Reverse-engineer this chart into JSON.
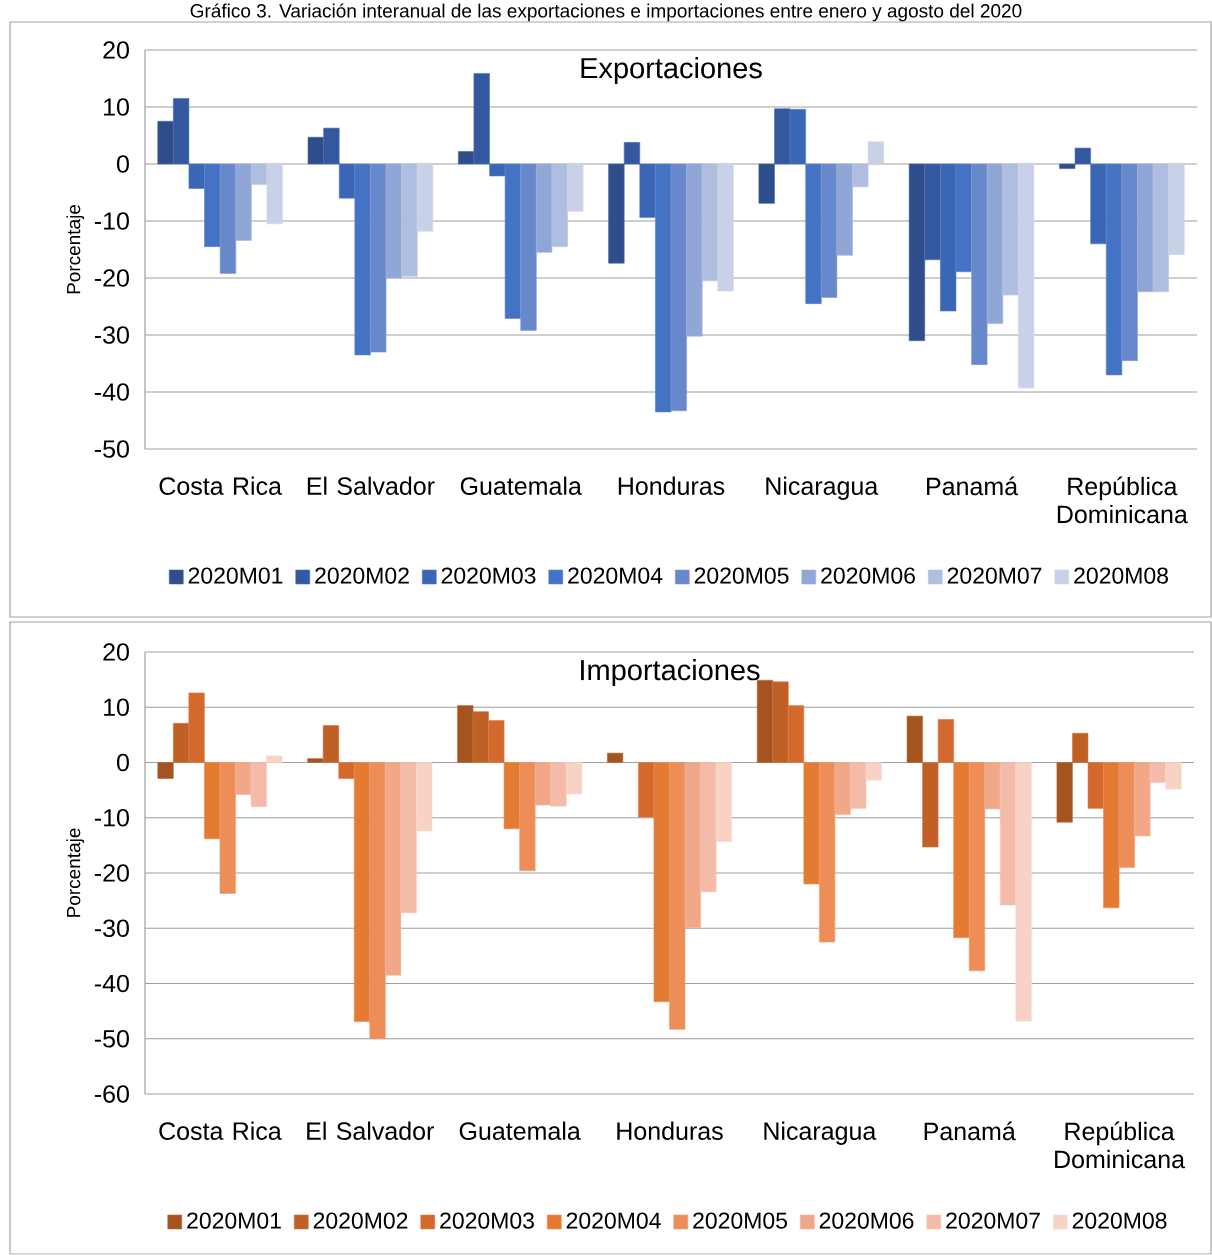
{
  "chart_data": [
    {
      "type": "bar",
      "title": "Exportaciones",
      "ylabel": "Porcentaje",
      "annotations": [
        "Gráfico 3. Variación interanual de las exportaciones e importaciones entre enero y agosto del 2020"
      ],
      "categories": [
        "Costa Rica",
        "El Salvador",
        "Guatemala",
        "Honduras",
        "Nicaragua",
        "Panamá",
        "República Dominicana"
      ],
      "series": [
        {
          "name": "2020M01",
          "color": "#2e4d8a",
          "values": [
            7.5,
            4.7,
            2.2,
            -17.4,
            -6.9,
            -31,
            -0.8
          ]
        },
        {
          "name": "2020M02",
          "color": "#3358a0",
          "values": [
            11.5,
            6.3,
            15.9,
            3.8,
            9.7,
            -16.8,
            2.8
          ]
        },
        {
          "name": "2020M03",
          "color": "#3a66b5",
          "values": [
            -4.3,
            -6,
            -2.1,
            -9.4,
            9.6,
            -25.8,
            -14
          ]
        },
        {
          "name": "2020M04",
          "color": "#4472c4",
          "values": [
            -14.5,
            -33.5,
            -27.1,
            -43.5,
            -24.5,
            -18.9,
            -37
          ]
        },
        {
          "name": "2020M05",
          "color": "#6888cc",
          "values": [
            -19.2,
            -33,
            -29.2,
            -43.3,
            -23.4,
            -35.2,
            -34.5
          ]
        },
        {
          "name": "2020M06",
          "color": "#8fa6d6",
          "values": [
            -13.4,
            -20,
            -15.5,
            -30.2,
            -16,
            -28,
            -22.4
          ]
        },
        {
          "name": "2020M07",
          "color": "#afbde0",
          "values": [
            -3.6,
            -19.7,
            -14.5,
            -20.5,
            -4,
            -23,
            -22.4
          ]
        },
        {
          "name": "2020M08",
          "color": "#c8d1e8",
          "values": [
            -10.5,
            -11.8,
            -8.3,
            -22.3,
            3.9,
            -39.3,
            -15.9
          ]
        }
      ],
      "ylim": [
        -50,
        20
      ],
      "yticks": [
        -50,
        -40,
        -30,
        -20,
        -10,
        0,
        10,
        20
      ],
      "grid": "y",
      "legend": "bottom"
    },
    {
      "type": "bar",
      "title": "Importaciones",
      "ylabel": "Porcentaje",
      "categories": [
        "Costa Rica",
        "El Salvador",
        "Guatemala",
        "Honduras",
        "Nicaragua",
        "Panamá",
        "República Dominicana"
      ],
      "series": [
        {
          "name": "2020M01",
          "color": "#a5541f",
          "values": [
            -2.9,
            0.7,
            10.3,
            1.7,
            14.9,
            8.4,
            -10.8
          ]
        },
        {
          "name": "2020M02",
          "color": "#c05f26",
          "values": [
            7.1,
            6.7,
            9.2,
            null,
            14.6,
            -15.3,
            5.3
          ]
        },
        {
          "name": "2020M03",
          "color": "#d4692d",
          "values": [
            12.6,
            -2.9,
            7.6,
            -9.9,
            10.3,
            7.8,
            -8.3
          ]
        },
        {
          "name": "2020M04",
          "color": "#e57a32",
          "values": [
            -13.8,
            -46.9,
            -12,
            -43.3,
            -22,
            -31.7,
            -26.3
          ]
        },
        {
          "name": "2020M05",
          "color": "#ed8d57",
          "values": [
            -23.7,
            -50,
            -19.6,
            -48.3,
            -32.5,
            -37.7,
            -19
          ]
        },
        {
          "name": "2020M06",
          "color": "#f0a888",
          "values": [
            -5.8,
            -38.5,
            -7.7,
            -29.9,
            -9.4,
            -8.4,
            -13.3
          ]
        },
        {
          "name": "2020M07",
          "color": "#f4bca8",
          "values": [
            -8,
            -27.2,
            -7.9,
            -23.4,
            -8.3,
            -25.8,
            -3.6
          ]
        },
        {
          "name": "2020M08",
          "color": "#f8d3c5",
          "values": [
            1.2,
            -12.4,
            -5.7,
            -14.3,
            -3.2,
            -46.8,
            -4.8
          ]
        }
      ],
      "ylim": [
        -60,
        20
      ],
      "yticks": [
        -60,
        -50,
        -40,
        -30,
        -20,
        -10,
        0,
        10,
        20
      ],
      "grid": "y",
      "legend": "bottom"
    }
  ]
}
